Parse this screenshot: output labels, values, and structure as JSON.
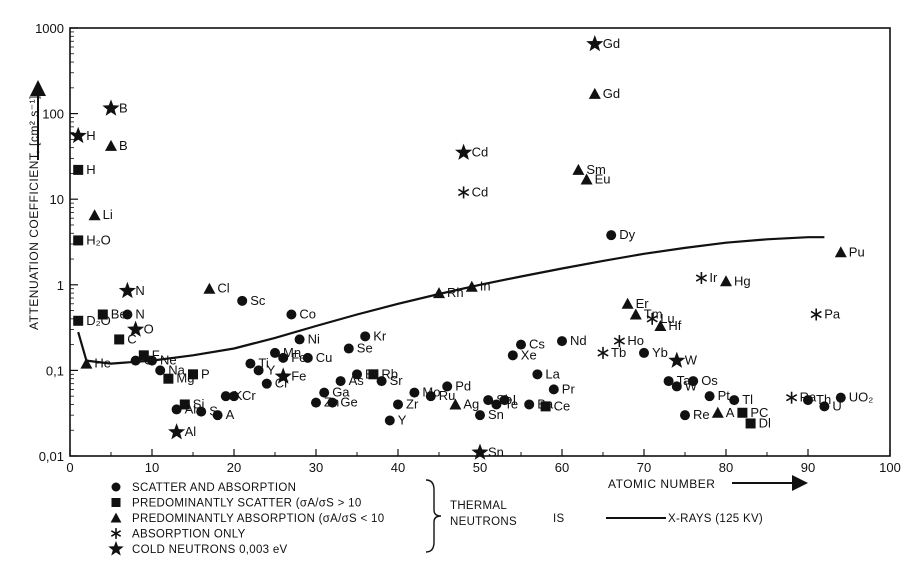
{
  "chart_data": {
    "type": "scatter",
    "title": "",
    "xlabel": "ATOMIC NUMBER",
    "ylabel": "ATTENUATION COEFFICIENT, [cm² s⁻¹]",
    "xlim": [
      0,
      100
    ],
    "ylim": [
      0.01,
      1000
    ],
    "yscale": "log",
    "xticks": [
      "0",
      "10",
      "20",
      "30",
      "40",
      "50",
      "60",
      "70",
      "80",
      "90",
      "100"
    ],
    "yticks": [
      "0,01",
      "0,1",
      "1",
      "10",
      "100",
      "1000"
    ],
    "legend": {
      "position": "bottom-left",
      "items": [
        {
          "symbol": "circle",
          "label": "SCATTER AND ABSORPTION"
        },
        {
          "symbol": "square",
          "label": "PREDOMINANTLY SCATTER (σA/σS > 10"
        },
        {
          "symbol": "triangle",
          "label": "PREDOMINANTLY ABSORPTION (σA/σS < 10"
        },
        {
          "symbol": "asterisk",
          "label": "ABSORPTION ONLY"
        },
        {
          "symbol": "star",
          "label": "COLD NEUTRONS 0,003 eV"
        }
      ],
      "brace_label": [
        "THERMAL",
        "NEUTRONS"
      ],
      "is_label": "IS",
      "line_label": "X-RAYS (125 KV)"
    },
    "series": [
      {
        "name": "SCATTER AND ABSORPTION",
        "marker": "circle",
        "points": [
          {
            "label": "N",
            "x": 7,
            "y": 0.45
          },
          {
            "label": "O",
            "x": 8,
            "y": 0.13
          },
          {
            "label": "Ne",
            "x": 10,
            "y": 0.13
          },
          {
            "label": "Na",
            "x": 11,
            "y": 0.1
          },
          {
            "label": "Al",
            "x": 13,
            "y": 0.035
          },
          {
            "label": "S",
            "x": 16,
            "y": 0.033
          },
          {
            "label": "K",
            "x": 19,
            "y": 0.05
          },
          {
            "label": "Cr",
            "x": 20,
            "y": 0.05
          },
          {
            "label": "A",
            "x": 18,
            "y": 0.03
          },
          {
            "label": "Sc",
            "x": 21,
            "y": 0.65
          },
          {
            "label": "Ti",
            "x": 22,
            "y": 0.12
          },
          {
            "label": "Cr",
            "x": 24,
            "y": 0.07
          },
          {
            "label": "Mn",
            "x": 25,
            "y": 0.16
          },
          {
            "label": "Fe",
            "x": 26,
            "y": 0.14
          },
          {
            "label": "Y",
            "x": 23,
            "y": 0.1
          },
          {
            "label": "Co",
            "x": 27,
            "y": 0.45
          },
          {
            "label": "Ni",
            "x": 28,
            "y": 0.23
          },
          {
            "label": "Cu",
            "x": 29,
            "y": 0.14
          },
          {
            "label": "Ga",
            "x": 31,
            "y": 0.055
          },
          {
            "label": "Zn",
            "x": 30,
            "y": 0.042
          },
          {
            "label": "Ge",
            "x": 32,
            "y": 0.042
          },
          {
            "label": "As",
            "x": 33,
            "y": 0.075
          },
          {
            "label": "Se",
            "x": 34,
            "y": 0.18
          },
          {
            "label": "Br",
            "x": 35,
            "y": 0.09
          },
          {
            "label": "Kr",
            "x": 36,
            "y": 0.25
          },
          {
            "label": "Sr",
            "x": 38,
            "y": 0.075
          },
          {
            "label": "Y",
            "x": 39,
            "y": 0.026
          },
          {
            "label": "Zr",
            "x": 40,
            "y": 0.04
          },
          {
            "label": "Mo",
            "x": 42,
            "y": 0.055
          },
          {
            "label": "Ru",
            "x": 44,
            "y": 0.05
          },
          {
            "label": "Pd",
            "x": 46,
            "y": 0.065
          },
          {
            "label": "Sb",
            "x": 51,
            "y": 0.045
          },
          {
            "label": "Te",
            "x": 52,
            "y": 0.04
          },
          {
            "label": "I",
            "x": 53,
            "y": 0.045
          },
          {
            "label": "Cs",
            "x": 55,
            "y": 0.2
          },
          {
            "label": "Xe",
            "x": 54,
            "y": 0.15
          },
          {
            "label": "La",
            "x": 57,
            "y": 0.09
          },
          {
            "label": "Ba",
            "x": 56,
            "y": 0.04
          },
          {
            "label": "Pr",
            "x": 59,
            "y": 0.06
          },
          {
            "label": "Nd",
            "x": 60,
            "y": 0.22
          },
          {
            "label": "Sn",
            "x": 50,
            "y": 0.03
          },
          {
            "label": "Dy",
            "x": 66,
            "y": 3.8
          },
          {
            "label": "Yb",
            "x": 70,
            "y": 0.16
          },
          {
            "label": "Ta",
            "x": 73,
            "y": 0.075
          },
          {
            "label": "W",
            "x": 74,
            "y": 0.065
          },
          {
            "label": "Re",
            "x": 75,
            "y": 0.03
          },
          {
            "label": "Os",
            "x": 76,
            "y": 0.075
          },
          {
            "label": "Pt",
            "x": 78,
            "y": 0.05
          },
          {
            "label": "Tl",
            "x": 81,
            "y": 0.045
          },
          {
            "label": "Th",
            "x": 90,
            "y": 0.045
          },
          {
            "label": "U",
            "x": 92,
            "y": 0.038
          },
          {
            "label": "UO₂",
            "x": 94,
            "y": 0.048
          }
        ]
      },
      {
        "name": "PREDOMINANTLY SCATTER",
        "marker": "square",
        "points": [
          {
            "label": "H",
            "x": 1,
            "y": 22
          },
          {
            "label": "H₂O",
            "x": 1,
            "y": 3.3
          },
          {
            "label": "D₂O",
            "x": 1,
            "y": 0.38
          },
          {
            "label": "Be",
            "x": 4,
            "y": 0.45
          },
          {
            "label": "C",
            "x": 6,
            "y": 0.23
          },
          {
            "label": "F",
            "x": 9,
            "y": 0.15
          },
          {
            "label": "Mg",
            "x": 12,
            "y": 0.08
          },
          {
            "label": "P",
            "x": 15,
            "y": 0.09
          },
          {
            "label": "Si",
            "x": 14,
            "y": 0.04
          },
          {
            "label": "Rb",
            "x": 37,
            "y": 0.09
          },
          {
            "label": "Ce",
            "x": 58,
            "y": 0.038
          },
          {
            "label": "PC",
            "x": 82,
            "y": 0.032
          },
          {
            "label": "Dl",
            "x": 83,
            "y": 0.024
          }
        ]
      },
      {
        "name": "PREDOMINANTLY ABSORPTION",
        "marker": "triangle",
        "points": [
          {
            "label": "B",
            "x": 5,
            "y": 42
          },
          {
            "label": "Li",
            "x": 3,
            "y": 6.5
          },
          {
            "label": "He",
            "x": 2,
            "y": 0.12
          },
          {
            "label": "Cl",
            "x": 17,
            "y": 0.9
          },
          {
            "label": "Rh",
            "x": 45,
            "y": 0.8
          },
          {
            "label": "In",
            "x": 49,
            "y": 0.95
          },
          {
            "label": "Gd",
            "x": 64,
            "y": 170
          },
          {
            "label": "Sm",
            "x": 62,
            "y": 22
          },
          {
            "label": "Eu",
            "x": 63,
            "y": 17
          },
          {
            "label": "Er",
            "x": 68,
            "y": 0.6
          },
          {
            "label": "Tm",
            "x": 69,
            "y": 0.45
          },
          {
            "label": "Hf",
            "x": 72,
            "y": 0.33
          },
          {
            "label": "Hg",
            "x": 80,
            "y": 1.1
          },
          {
            "label": "Pu",
            "x": 94,
            "y": 2.4
          },
          {
            "label": "Ag",
            "x": 47,
            "y": 0.04
          },
          {
            "label": "A",
            "x": 79,
            "y": 0.032
          }
        ]
      },
      {
        "name": "ABSORPTION ONLY",
        "marker": "asterisk",
        "points": [
          {
            "label": "Cd",
            "x": 48,
            "y": 12
          },
          {
            "label": "Ir",
            "x": 77,
            "y": 1.2
          },
          {
            "label": "Lu",
            "x": 71,
            "y": 0.4
          },
          {
            "label": "Ho",
            "x": 67,
            "y": 0.22
          },
          {
            "label": "Tb",
            "x": 65,
            "y": 0.16
          },
          {
            "label": "Pa",
            "x": 91,
            "y": 0.45
          },
          {
            "label": "Ra",
            "x": 88,
            "y": 0.048
          }
        ]
      },
      {
        "name": "COLD NEUTRONS 0,003 eV",
        "marker": "star",
        "points": [
          {
            "label": "Gd",
            "x": 64,
            "y": 650
          },
          {
            "label": "B",
            "x": 5,
            "y": 115
          },
          {
            "label": "H",
            "x": 1,
            "y": 55
          },
          {
            "label": "Cd",
            "x": 48,
            "y": 35
          },
          {
            "label": "N",
            "x": 7,
            "y": 0.85
          },
          {
            "label": "O",
            "x": 8,
            "y": 0.3
          },
          {
            "label": "Fe",
            "x": 26,
            "y": 0.085
          },
          {
            "label": "W",
            "x": 74,
            "y": 0.13
          },
          {
            "label": "Al",
            "x": 13,
            "y": 0.019
          },
          {
            "label": "Sn",
            "x": 50,
            "y": 0.011
          }
        ]
      }
    ],
    "xray_line": {
      "label": "X-RAYS (125 KV)",
      "x": [
        1,
        2,
        5,
        10,
        15,
        20,
        25,
        30,
        35,
        40,
        45,
        50,
        55,
        60,
        65,
        70,
        75,
        80,
        85,
        90,
        92
      ],
      "y": [
        0.28,
        0.13,
        0.12,
        0.13,
        0.15,
        0.18,
        0.24,
        0.33,
        0.45,
        0.6,
        0.78,
        1.0,
        1.25,
        1.55,
        1.9,
        2.3,
        2.7,
        3.1,
        3.4,
        3.6,
        3.6
      ]
    }
  }
}
